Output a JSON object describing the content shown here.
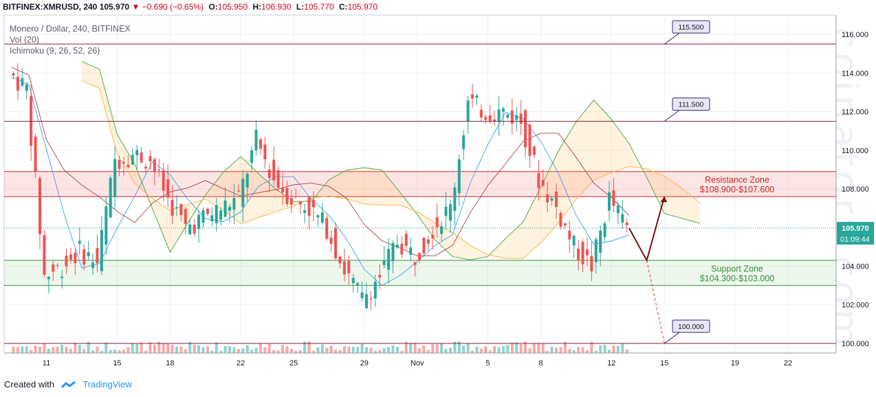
{
  "header": {
    "symbol": "BITFINEX:XMRUSD, 240",
    "last": "105.970",
    "change": "−0.690 (−0.65%)",
    "open_label": "O:",
    "open": "105.950",
    "high_label": "H:",
    "high": "106.930",
    "low_label": "L:",
    "low": "105.770",
    "close_label": "C:",
    "close": "105.970"
  },
  "legend": {
    "title": "Monero / Dollar, 240, BITFINEX",
    "vol": "Vol (20)",
    "ichimoku": "Ichimoku (9, 26, 52, 26)"
  },
  "footer": {
    "created_with": "Created with",
    "brand": "TradingView"
  },
  "watermark": "coinatory.com",
  "colors": {
    "up": "#26a69a",
    "down": "#ef5350",
    "cloud_bull": "#4caf50",
    "cloud_bear": "#ffb74d",
    "resistance": "#ef9a9a",
    "support": "#a5d6a7",
    "arrow": "#7b1113"
  },
  "chart_data": {
    "type": "candlestick",
    "ylim": [
      99.5,
      117.0
    ],
    "y_ticks": [
      100.0,
      102.0,
      104.0,
      106.0,
      108.0,
      110.0,
      112.0,
      114.0,
      116.0
    ],
    "x_ticks": [
      "11",
      "15",
      "18",
      "22",
      "25",
      "29",
      "Nov",
      "5",
      "8",
      "12",
      "15",
      "19",
      "22"
    ],
    "price_label": "105.970",
    "countdown": "01:09:44",
    "levels": [
      {
        "label": "115.500",
        "value": 115.5
      },
      {
        "label": "111.500",
        "value": 111.5
      },
      {
        "label": "100.000",
        "value": 100.0
      }
    ],
    "zones": [
      {
        "name": "Resistance Zone",
        "range_label": "$108.900-$107.600",
        "high": 108.9,
        "low": 107.6
      },
      {
        "name": "Support Zone",
        "range_label": "$104.300-$103.000",
        "high": 104.3,
        "low": 103.0
      }
    ],
    "price_path": [
      {
        "date": "Oct 9",
        "close": 114.0
      },
      {
        "date": "Oct 10",
        "close": 113.2
      },
      {
        "date": "Oct 11",
        "close": 103.5
      },
      {
        "date": "Oct 12",
        "close": 104.0
      },
      {
        "date": "Oct 13",
        "close": 104.8
      },
      {
        "date": "Oct 14",
        "close": 104.2
      },
      {
        "date": "Oct 15",
        "close": 109.5
      },
      {
        "date": "Oct 16",
        "close": 109.8
      },
      {
        "date": "Oct 17",
        "close": 109.5
      },
      {
        "date": "Oct 18",
        "close": 107.5
      },
      {
        "date": "Oct 19",
        "close": 106.0
      },
      {
        "date": "Oct 20",
        "close": 106.5
      },
      {
        "date": "Oct 21",
        "close": 107.0
      },
      {
        "date": "Oct 22",
        "close": 107.5
      },
      {
        "date": "Oct 23",
        "close": 110.5
      },
      {
        "date": "Oct 24",
        "close": 108.5
      },
      {
        "date": "Oct 25",
        "close": 107.5
      },
      {
        "date": "Oct 26",
        "close": 107.0
      },
      {
        "date": "Oct 27",
        "close": 106.0
      },
      {
        "date": "Oct 28",
        "close": 103.8
      },
      {
        "date": "Oct 29",
        "close": 102.3
      },
      {
        "date": "Oct 30",
        "close": 103.5
      },
      {
        "date": "Oct 31",
        "close": 105.3
      },
      {
        "date": "Nov 1",
        "close": 104.5
      },
      {
        "date": "Nov 2",
        "close": 106.0
      },
      {
        "date": "Nov 3",
        "close": 107.0
      },
      {
        "date": "Nov 4",
        "close": 112.5
      },
      {
        "date": "Nov 5",
        "close": 112.0
      },
      {
        "date": "Nov 6",
        "close": 112.0
      },
      {
        "date": "Nov 7",
        "close": 111.5
      },
      {
        "date": "Nov 8",
        "close": 108.5
      },
      {
        "date": "Nov 9",
        "close": 107.0
      },
      {
        "date": "Nov 10",
        "close": 105.0
      },
      {
        "date": "Nov 11",
        "close": 104.0
      },
      {
        "date": "Nov 12",
        "close": 107.5
      },
      {
        "date": "Nov 13",
        "close": 105.97
      }
    ],
    "projection": {
      "bull": [
        {
          "date": "Nov 13",
          "value": 105.97
        },
        {
          "date": "Nov 14",
          "value": 104.3
        },
        {
          "date": "Nov 15",
          "value": 107.6
        }
      ],
      "bear": [
        {
          "date": "Nov 14",
          "value": 104.3
        },
        {
          "date": "Nov 15",
          "value": 100.0
        }
      ]
    }
  }
}
